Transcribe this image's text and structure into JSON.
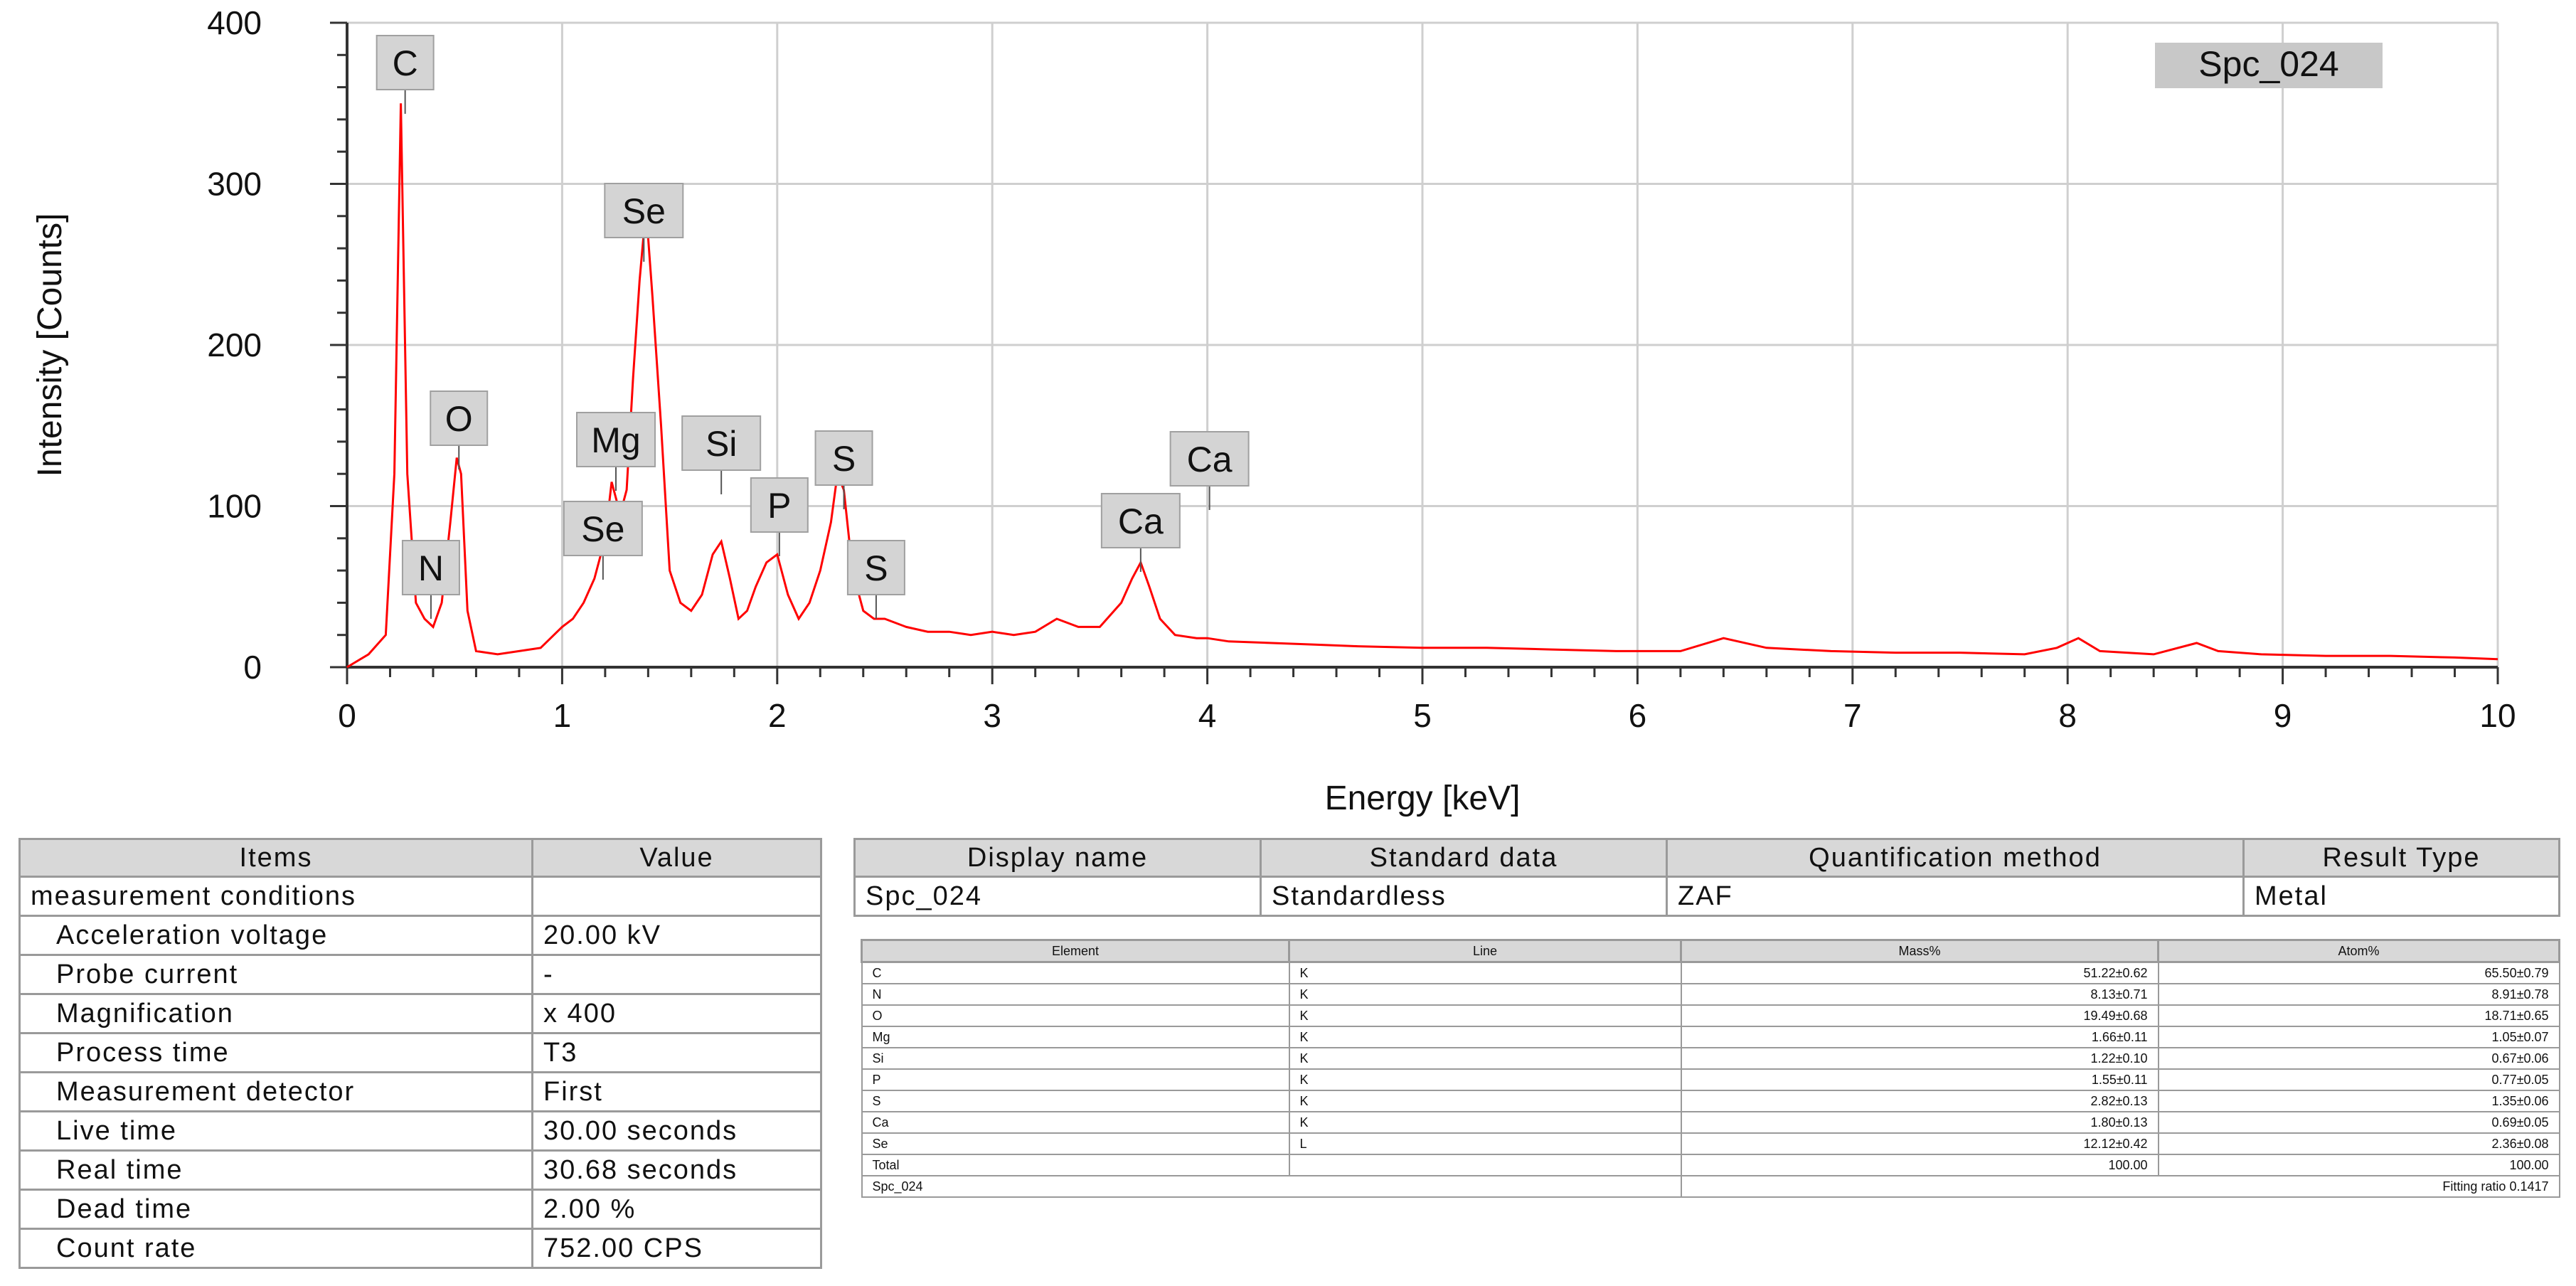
{
  "chart_data": {
    "type": "line",
    "xlabel": "Energy [keV]",
    "ylabel": "Intensity [Counts]",
    "xlim": [
      0,
      10
    ],
    "ylim": [
      0,
      400
    ],
    "x_ticks": [
      0,
      1,
      2,
      3,
      4,
      5,
      6,
      7,
      8,
      9,
      10
    ],
    "y_ticks": [
      0,
      100,
      200,
      300,
      400
    ],
    "grid": true,
    "legend_label": "Spc_024",
    "series_color": "#ff0000",
    "series": [
      {
        "x": [
          0.0,
          0.1,
          0.18,
          0.22,
          0.25,
          0.28,
          0.32,
          0.36,
          0.4,
          0.44,
          0.48,
          0.51,
          0.53,
          0.56,
          0.6,
          0.7,
          0.8,
          0.9,
          1.0,
          1.05,
          1.1,
          1.15,
          1.2,
          1.23,
          1.27,
          1.3,
          1.33,
          1.36,
          1.39,
          1.42,
          1.46,
          1.5,
          1.55,
          1.6,
          1.65,
          1.7,
          1.74,
          1.78,
          1.82,
          1.86,
          1.9,
          1.95,
          2.0,
          2.05,
          2.1,
          2.15,
          2.2,
          2.25,
          2.28,
          2.31,
          2.35,
          2.4,
          2.45,
          2.5,
          2.6,
          2.7,
          2.8,
          2.9,
          3.0,
          3.1,
          3.2,
          3.3,
          3.4,
          3.5,
          3.6,
          3.65,
          3.69,
          3.73,
          3.78,
          3.85,
          3.95,
          4.0,
          4.1,
          4.3,
          4.5,
          4.7,
          5.0,
          5.3,
          5.6,
          5.9,
          6.2,
          6.4,
          6.6,
          6.9,
          7.2,
          7.5,
          7.8,
          7.95,
          8.05,
          8.15,
          8.4,
          8.6,
          8.7,
          8.9,
          9.2,
          9.5,
          9.8,
          10.0
        ],
        "y": [
          0,
          8,
          20,
          120,
          350,
          120,
          40,
          30,
          25,
          40,
          90,
          130,
          120,
          35,
          10,
          8,
          10,
          12,
          25,
          30,
          40,
          55,
          80,
          115,
          95,
          110,
          180,
          240,
          285,
          230,
          150,
          60,
          40,
          35,
          45,
          70,
          78,
          55,
          30,
          35,
          50,
          65,
          70,
          45,
          30,
          40,
          60,
          90,
          120,
          110,
          60,
          35,
          30,
          30,
          25,
          22,
          22,
          20,
          22,
          20,
          22,
          30,
          25,
          25,
          40,
          55,
          65,
          50,
          30,
          20,
          18,
          18,
          16,
          15,
          14,
          13,
          12,
          12,
          11,
          10,
          10,
          18,
          12,
          10,
          9,
          9,
          8,
          12,
          18,
          10,
          8,
          15,
          10,
          8,
          7,
          7,
          6,
          5
        ]
      }
    ],
    "peak_labels": [
      {
        "text": "C",
        "energy": 0.27
      },
      {
        "text": "N",
        "energy": 0.39
      },
      {
        "text": "O",
        "energy": 0.52
      },
      {
        "text": "Mg",
        "energy": 1.25
      },
      {
        "text": "Se",
        "energy": 1.19
      },
      {
        "text": "Se",
        "energy": 1.38
      },
      {
        "text": "Si",
        "energy": 1.74
      },
      {
        "text": "P",
        "energy": 2.01
      },
      {
        "text": "S",
        "energy": 2.31
      },
      {
        "text": "S",
        "energy": 2.46
      },
      {
        "text": "Ca",
        "energy": 3.69
      },
      {
        "text": "Ca",
        "energy": 4.01
      }
    ]
  },
  "items_table": {
    "headers": [
      "Items",
      "Value"
    ],
    "rows": [
      {
        "item": "measurement conditions",
        "value": "",
        "indent": false
      },
      {
        "item": "Acceleration voltage",
        "value": "20.00 kV",
        "indent": true
      },
      {
        "item": "Probe current",
        "value": "-",
        "indent": true
      },
      {
        "item": "Magnification",
        "value": "x 400",
        "indent": true
      },
      {
        "item": "Process time",
        "value": "T3",
        "indent": true
      },
      {
        "item": "Measurement detector",
        "value": "First",
        "indent": true
      },
      {
        "item": "Live time",
        "value": "30.00 seconds",
        "indent": true
      },
      {
        "item": "Real time",
        "value": "30.68 seconds",
        "indent": true
      },
      {
        "item": "Dead time",
        "value": "2.00 %",
        "indent": true
      },
      {
        "item": "Count rate",
        "value": "752.00 CPS",
        "indent": true
      }
    ]
  },
  "info_table": {
    "headers": [
      "Display name",
      "Standard data",
      "Quantification method",
      "Result Type"
    ],
    "row": [
      "Spc_024",
      "Standardless",
      "ZAF",
      "Metal"
    ]
  },
  "quant_table": {
    "headers": [
      "Element",
      "Line",
      "Mass%",
      "Atom%"
    ],
    "rows": [
      [
        "C",
        "K",
        "51.22±0.62",
        "65.50±0.79"
      ],
      [
        "N",
        "K",
        "8.13±0.71",
        "8.91±0.78"
      ],
      [
        "O",
        "K",
        "19.49±0.68",
        "18.71±0.65"
      ],
      [
        "Mg",
        "K",
        "1.66±0.11",
        "1.05±0.07"
      ],
      [
        "Si",
        "K",
        "1.22±0.10",
        "0.67±0.06"
      ],
      [
        "P",
        "K",
        "1.55±0.11",
        "0.77±0.05"
      ],
      [
        "S",
        "K",
        "2.82±0.13",
        "1.35±0.06"
      ],
      [
        "Ca",
        "K",
        "1.80±0.13",
        "0.69±0.05"
      ],
      [
        "Se",
        "L",
        "12.12±0.42",
        "2.36±0.08"
      ],
      [
        "Total",
        "",
        "100.00",
        "100.00"
      ]
    ],
    "footer_left": "Spc_024",
    "footer_right": "Fitting ratio 0.1417"
  }
}
